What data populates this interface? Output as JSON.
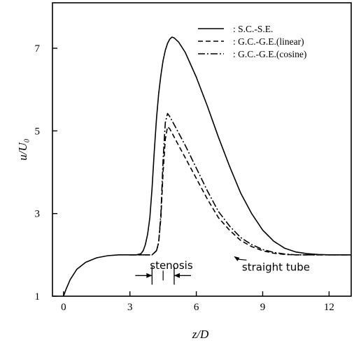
{
  "chart_data": {
    "type": "line",
    "title": "",
    "xlabel": "z/D",
    "ylabel": "u/U₀",
    "xlim": [
      -0.5,
      13
    ],
    "ylim": [
      1,
      8.1
    ],
    "xticks": [
      0,
      3,
      6,
      9,
      12
    ],
    "yticks": [
      1,
      3,
      5,
      7
    ],
    "grid": false,
    "legend_position": "top-right",
    "series": [
      {
        "name": "S.C.-S.E.",
        "style": "solid",
        "x": [
          0,
          0.1,
          0.3,
          0.6,
          1.0,
          1.5,
          2.0,
          2.5,
          3.0,
          3.3,
          3.5,
          3.6,
          3.7,
          3.8,
          3.9,
          4.0,
          4.1,
          4.2,
          4.3,
          4.4,
          4.5,
          4.6,
          4.7,
          4.8,
          4.9,
          5.0,
          5.2,
          5.5,
          6.0,
          6.5,
          7.0,
          7.5,
          8.0,
          8.5,
          9.0,
          9.5,
          10.0,
          10.5,
          11.0,
          11.5,
          12.0,
          13.0
        ],
        "y": [
          1.0,
          1.15,
          1.4,
          1.65,
          1.82,
          1.93,
          1.98,
          2.0,
          2.0,
          2.0,
          2.03,
          2.1,
          2.25,
          2.5,
          2.9,
          3.6,
          4.5,
          5.3,
          5.9,
          6.35,
          6.7,
          6.95,
          7.12,
          7.22,
          7.27,
          7.25,
          7.15,
          6.9,
          6.3,
          5.6,
          4.85,
          4.15,
          3.5,
          3.0,
          2.6,
          2.33,
          2.16,
          2.07,
          2.03,
          2.01,
          2.0,
          2.0
        ]
      },
      {
        "name": "G.C.-G.E.(linear)",
        "style": "dashed",
        "x": [
          3.0,
          4.0,
          4.2,
          4.3,
          4.4,
          4.5,
          4.6,
          4.7,
          4.8,
          4.9,
          5.0,
          5.2,
          5.5,
          6.0,
          6.5,
          7.0,
          7.5,
          8.0,
          8.5,
          9.0,
          9.5,
          10.0,
          10.5,
          13.0
        ],
        "y": [
          2.0,
          2.0,
          2.1,
          2.3,
          2.9,
          4.0,
          4.8,
          5.1,
          5.05,
          4.95,
          4.85,
          4.65,
          4.35,
          3.85,
          3.35,
          2.9,
          2.6,
          2.35,
          2.2,
          2.1,
          2.04,
          2.01,
          2.0,
          2.0
        ]
      },
      {
        "name": "G.C.-G.E.(cosine)",
        "style": "dashdot",
        "x": [
          3.0,
          4.0,
          4.2,
          4.3,
          4.4,
          4.5,
          4.6,
          4.7,
          4.8,
          4.9,
          5.0,
          5.2,
          5.5,
          6.0,
          6.5,
          7.0,
          7.5,
          8.0,
          8.5,
          9.0,
          9.5,
          10.0,
          10.5,
          13.0
        ],
        "y": [
          2.0,
          2.0,
          2.1,
          2.3,
          3.0,
          4.3,
          5.2,
          5.42,
          5.35,
          5.25,
          5.15,
          4.95,
          4.65,
          4.1,
          3.55,
          3.05,
          2.7,
          2.42,
          2.25,
          2.13,
          2.06,
          2.02,
          2.0,
          2.0
        ]
      }
    ],
    "annotations": [
      {
        "text": "stenosis",
        "x": 5.0,
        "y": 1.93
      },
      {
        "text": "straight tube",
        "x": 9.6,
        "y": 1.62,
        "points_to": [
          7.7,
          2.0
        ]
      }
    ],
    "stenosis_range": [
      4.0,
      5.0
    ]
  }
}
